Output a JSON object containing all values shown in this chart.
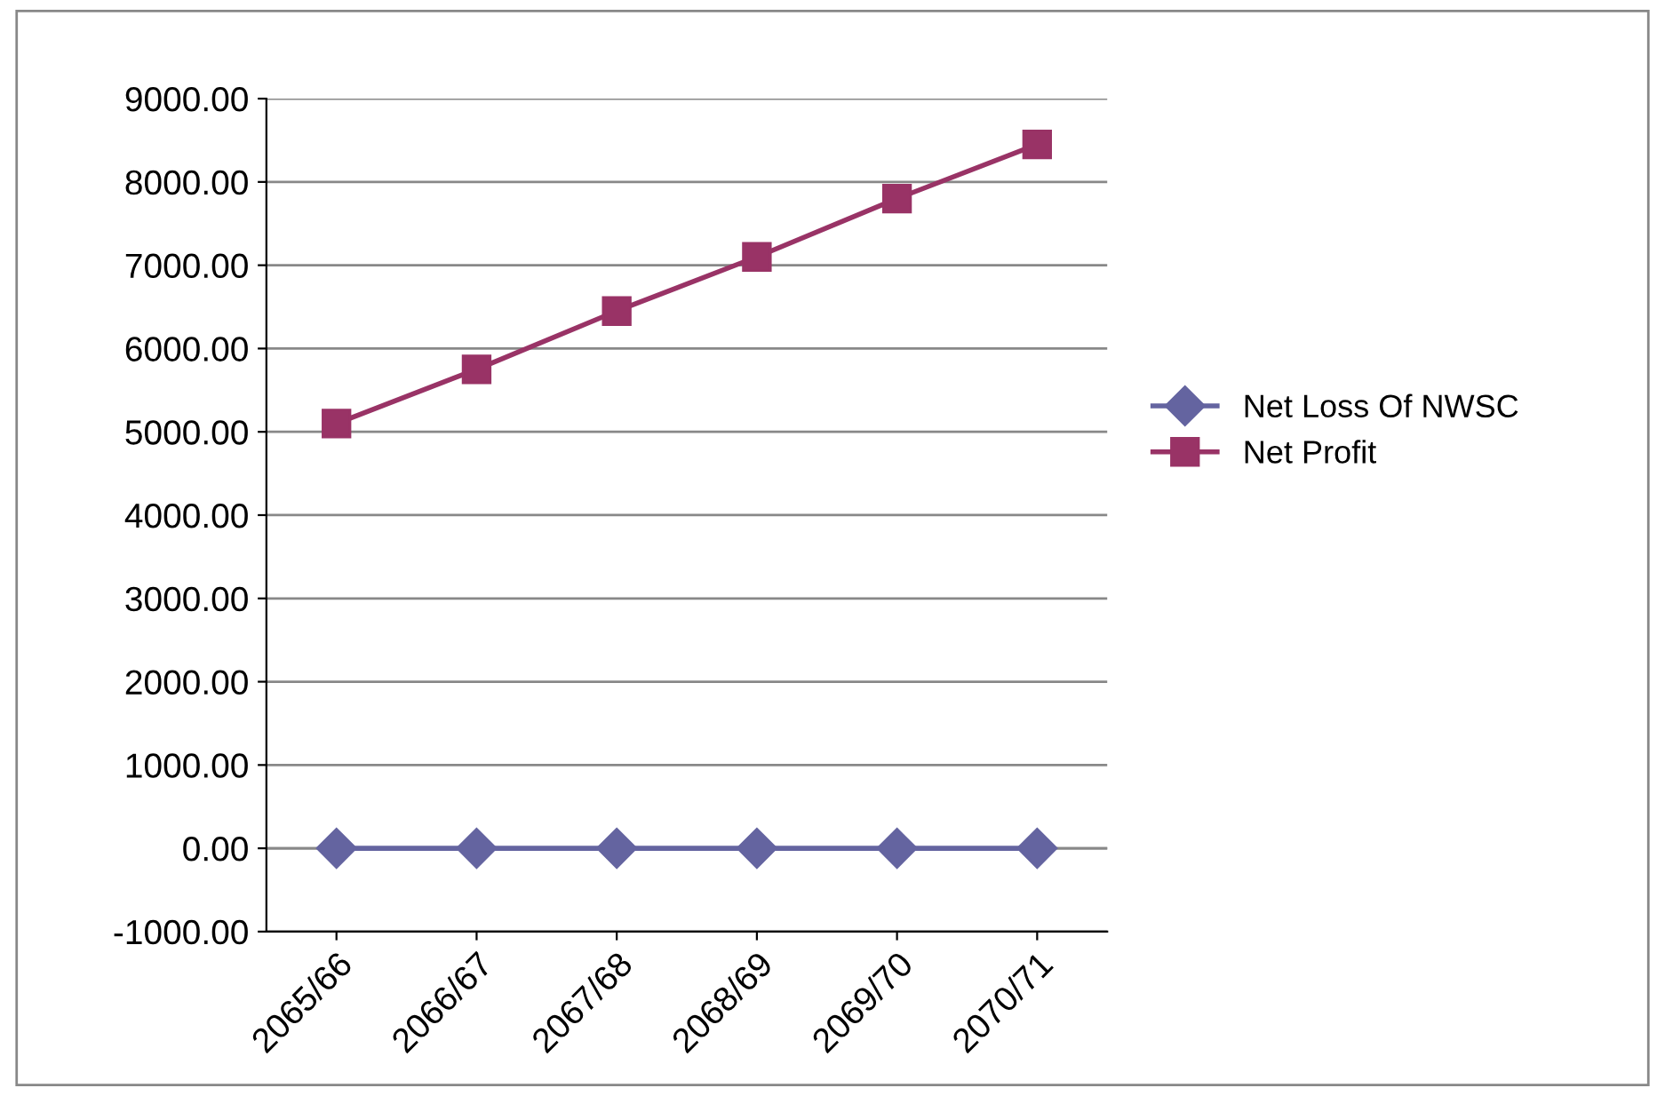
{
  "chart_data": {
    "type": "line",
    "categories": [
      "2065/66",
      "2066/67",
      "2067/68",
      "2068/69",
      "2069/70",
      "2070/71"
    ],
    "series": [
      {
        "name": "Net Loss Of NWSC",
        "color": "#6464a0",
        "marker": "diamond",
        "values": [
          0,
          0,
          0,
          0,
          0,
          0
        ]
      },
      {
        "name": "Net Profit",
        "color": "#993366",
        "marker": "square",
        "values": [
          5100,
          5750,
          6450,
          7100,
          7800,
          8450
        ]
      }
    ],
    "ylim": [
      -1000,
      9000
    ],
    "yticks": [
      {
        "value": -1000,
        "label": "-1000.00"
      },
      {
        "value": 0,
        "label": "0.00"
      },
      {
        "value": 1000,
        "label": "1000.00"
      },
      {
        "value": 2000,
        "label": "2000.00"
      },
      {
        "value": 3000,
        "label": "3000.00"
      },
      {
        "value": 4000,
        "label": "4000.00"
      },
      {
        "value": 5000,
        "label": "5000.00"
      },
      {
        "value": 6000,
        "label": "6000.00"
      },
      {
        "value": 7000,
        "label": "7000.00"
      },
      {
        "value": 8000,
        "label": "8000.00"
      },
      {
        "value": 9000,
        "label": "9000.00"
      }
    ],
    "grid": "y",
    "legend": "right",
    "line_style": "solid"
  }
}
